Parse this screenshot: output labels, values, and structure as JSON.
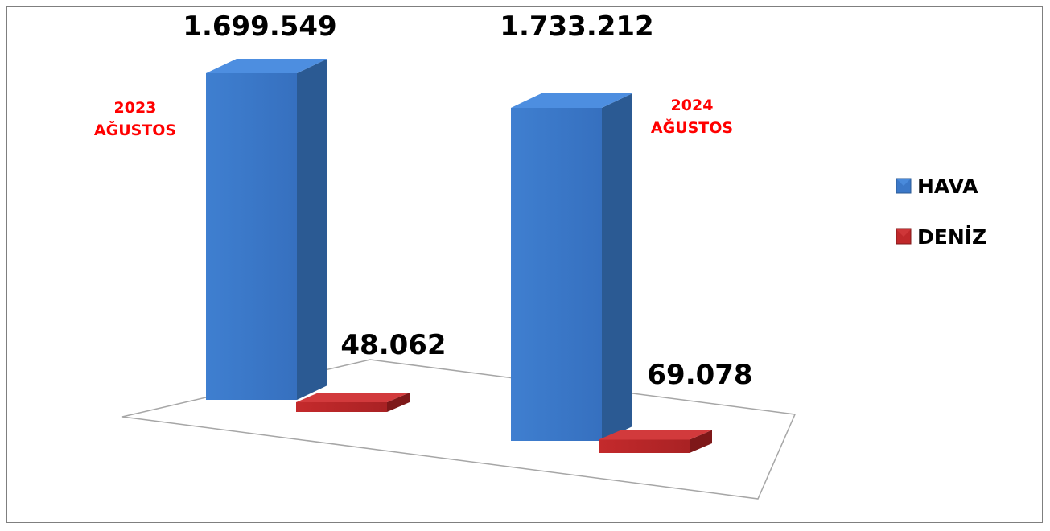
{
  "chart_data": {
    "type": "bar",
    "categories": [
      "2023\nAĞUSTOS",
      "2024\nAĞUSTOS"
    ],
    "category_lines": [
      [
        "2023",
        "AĞUSTOS"
      ],
      [
        "2024",
        "AĞUSTOS"
      ]
    ],
    "series": [
      {
        "name": "HAVA",
        "values": [
          1699549,
          1733212
        ],
        "labels": [
          "1.699.549",
          "1.733.212"
        ],
        "color": "#3b78c8"
      },
      {
        "name": "DENİZ",
        "values": [
          48062,
          69078
        ],
        "labels": [
          "48.062",
          "69.078"
        ],
        "color": "#c0282a"
      }
    ],
    "title": "",
    "xlabel": "",
    "ylabel": "",
    "ylim": [
      0,
      1800000
    ],
    "grid": false,
    "legend": "right",
    "three_d": true,
    "category_label_color": "#ff0000"
  }
}
